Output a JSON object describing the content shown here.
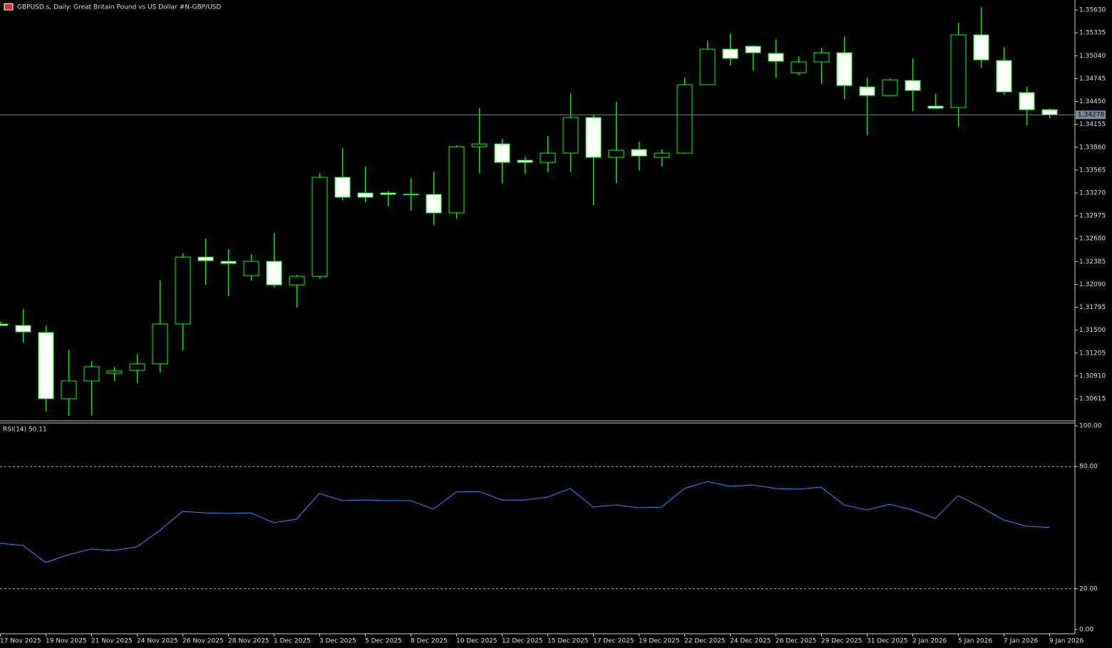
{
  "chart_data": [
    {
      "type": "candlestick",
      "title": "GBPUSD.s, Daily:  Great Britain Pound vs US Dollar #N-GBP/USD",
      "categories": [
        "17 Nov 2025",
        null,
        "19 Nov 2025",
        null,
        "21 Nov 2025",
        null,
        "24 Nov 2025",
        null,
        "26 Nov 2025",
        null,
        "28 Nov 2025",
        null,
        "1 Dec 2025",
        null,
        "3 Dec 2025",
        null,
        "5 Dec 2025",
        null,
        "8 Dec 2025",
        null,
        "10 Dec 2025",
        null,
        "12 Dec 2025",
        null,
        "15 Dec 2025",
        null,
        "17 Dec 2025",
        null,
        "19 Dec 2025",
        null,
        "22 Dec 2025",
        null,
        "24 Dec 2025",
        null,
        "26 Dec 2025",
        null,
        "29 Dec 2025",
        null,
        "31 Dec 2025",
        null,
        "2 Jan 2026",
        null,
        "5 Jan 2026",
        null,
        "7 Jan 2026",
        null,
        "9 Jan 2026"
      ],
      "open": [
        1.3158,
        1.31561,
        1.3147,
        1.30616,
        1.30845,
        1.30946,
        1.30983,
        1.31066,
        1.3158,
        1.32443,
        1.32388,
        1.32204,
        1.32388,
        1.32085,
        1.32195,
        1.33472,
        1.3327,
        1.3327,
        1.33251,
        1.33251,
        1.33013,
        1.33867,
        1.33903,
        1.33692,
        1.33665,
        1.33784,
        1.34243,
        1.33729,
        1.3383,
        1.33729,
        1.33784,
        1.34666,
        1.35125,
        1.35162,
        1.3507,
        1.34822,
        1.3496,
        1.35079,
        1.34638,
        1.34528,
        1.34721,
        1.3439,
        1.34372,
        1.35309,
        1.34978,
        1.34565,
        1.34344
      ],
      "high": [
        1.31607,
        1.31773,
        1.31561,
        1.31249,
        1.31102,
        1.31029,
        1.31194,
        1.32149,
        1.32489,
        1.32682,
        1.32544,
        1.3248,
        1.32755,
        1.32214,
        1.33527,
        1.33848,
        1.3361,
        1.33297,
        1.33463,
        1.33545,
        1.33885,
        1.34363,
        1.33968,
        1.33738,
        1.34004,
        1.34555,
        1.34271,
        1.34445,
        1.33931,
        1.3383,
        1.34758,
        1.35235,
        1.35327,
        1.3518,
        1.35253,
        1.35033,
        1.35143,
        1.3529,
        1.34758,
        1.34748,
        1.35006,
        1.34546,
        1.35465,
        1.35667,
        1.35152,
        1.34638,
        1.34363
      ],
      "low": [
        1.31552,
        1.31341,
        1.3045,
        1.30395,
        1.304,
        1.30845,
        1.30818,
        1.30955,
        1.3124,
        1.32085,
        1.31938,
        1.3214,
        1.32057,
        1.31791,
        1.32168,
        1.33178,
        1.3315,
        1.33095,
        1.3304,
        1.32856,
        1.32939,
        1.33527,
        1.33398,
        1.33518,
        1.33536,
        1.33545,
        1.33114,
        1.33398,
        1.33564,
        1.3361,
        1.33775,
        1.3466,
        1.34914,
        1.34849,
        1.34758,
        1.34794,
        1.34675,
        1.34482,
        1.34014,
        1.3452,
        1.34326,
        1.34355,
        1.34124,
        1.34886,
        1.34537,
        1.34142,
        1.34234
      ],
      "close": [
        1.31561,
        1.31479,
        1.30616,
        1.30845,
        1.31029,
        1.30974,
        1.31066,
        1.3158,
        1.32443,
        1.32397,
        1.32361,
        1.32388,
        1.32085,
        1.32195,
        1.33472,
        1.33215,
        1.33215,
        1.33251,
        1.33255,
        1.33013,
        1.33867,
        1.33903,
        1.33665,
        1.33665,
        1.33784,
        1.34243,
        1.33729,
        1.33821,
        1.33747,
        1.33784,
        1.34666,
        1.35125,
        1.35006,
        1.35079,
        1.34969,
        1.3496,
        1.35079,
        1.34656,
        1.34528,
        1.3473,
        1.34592,
        1.34363,
        1.35309,
        1.34987,
        1.34574,
        1.34344,
        1.34278
      ],
      "last_price": {
        "value": 1.34278,
        "label": "1.34278"
      },
      "ylim": [
        1.3034,
        1.35759
      ],
      "yticks": [
        {
          "value": 1.3563,
          "label": "1.35630"
        },
        1.35335,
        {
          "value": 1.3504,
          "label": "1.35040"
        },
        1.34745,
        {
          "value": 1.3445,
          "label": "1.34450"
        },
        1.34155,
        {
          "value": 1.3386,
          "label": "1.33860"
        },
        1.33565,
        {
          "value": 1.3327,
          "label": "1.33270"
        },
        1.32975,
        {
          "value": 1.3268,
          "label": "1.32680"
        },
        1.32385,
        {
          "value": 1.3209,
          "label": "1.32090"
        },
        1.31795,
        {
          "value": 1.315,
          "label": "1.31500"
        },
        1.31205,
        {
          "value": 1.3091,
          "label": "1.30910"
        },
        1.30615
      ],
      "color": "#00ff00",
      "bull_fill": "#000000",
      "bear_fill": "#ffffff",
      "price_line_color": "#778899"
    },
    {
      "type": "line",
      "title": "RSI(14) 50.11",
      "values": [
        42.3,
        41.3,
        32.9,
        36.7,
        39.5,
        38.8,
        40.6,
        48.6,
        58.0,
        57.3,
        57.0,
        57.3,
        52.4,
        54.2,
        66.8,
        63.3,
        63.6,
        63.3,
        63.3,
        59.1,
        67.5,
        67.8,
        63.6,
        63.6,
        65.0,
        69.2,
        60.1,
        61.2,
        59.8,
        60.1,
        69.2,
        72.7,
        70.3,
        71.0,
        69.2,
        68.9,
        69.9,
        61.2,
        58.7,
        61.5,
        58.7,
        54.5,
        65.7,
        60.1,
        53.8,
        50.7,
        50.11
      ],
      "color": "#1e90ff",
      "ylim": [
        -2.1,
        101.4
      ],
      "yticks": [
        {
          "value": 100,
          "label": "100.00"
        },
        {
          "value": 80,
          "label": "80.00"
        },
        {
          "value": 20,
          "label": "20.00"
        },
        {
          "value": 0,
          "label": "0.00"
        }
      ],
      "levels": [
        80,
        20
      ]
    }
  ]
}
